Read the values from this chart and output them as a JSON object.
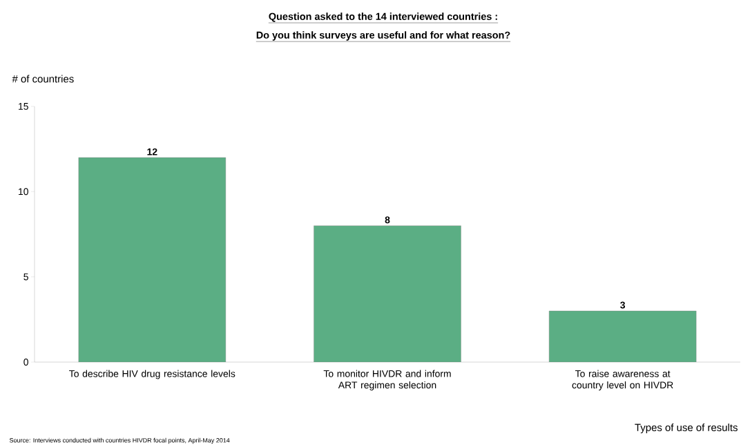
{
  "chart_data": {
    "type": "bar",
    "title": "Question asked to the 14 interviewed countries :",
    "subtitle": "Do you think surveys are useful and for what reason?",
    "ylabel": "# of countries",
    "xlabel": "Types of use of results",
    "categories": [
      "To describe HIV drug resistance levels",
      "To monitor HIVDR and inform ART regimen selection",
      "To raise awareness at country level on HIVDR"
    ],
    "values": [
      12,
      8,
      3
    ],
    "color": "#5bae84",
    "ylim": [
      0,
      15
    ],
    "yticks": [
      0,
      5,
      10,
      15
    ],
    "data_labels": true,
    "grid": false,
    "annotations": [
      "Source: Interviews conducted with countries HIVDR focal points, April-May 2014"
    ]
  }
}
